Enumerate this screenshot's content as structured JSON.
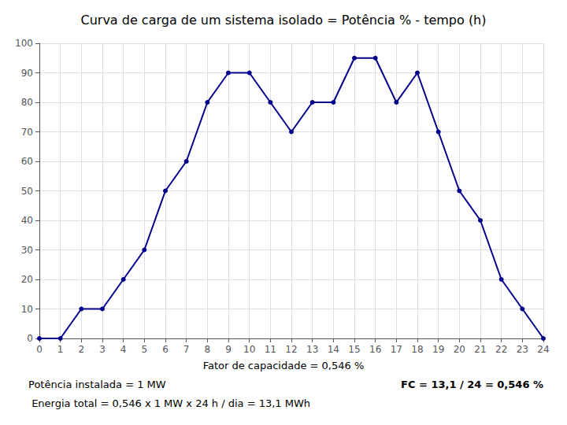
{
  "chart_data": {
    "type": "line",
    "title": "Curva de carga de um sistema isolado = Potência % - tempo (h)",
    "x": [
      0,
      1,
      2,
      3,
      4,
      5,
      6,
      7,
      8,
      9,
      10,
      11,
      12,
      13,
      14,
      15,
      16,
      17,
      18,
      19,
      20,
      21,
      22,
      23,
      24
    ],
    "values": [
      0,
      0,
      10,
      10,
      20,
      30,
      50,
      60,
      80,
      90,
      90,
      80,
      70,
      80,
      80,
      95,
      95,
      80,
      90,
      70,
      50,
      40,
      20,
      10,
      0
    ],
    "color": "#00008B",
    "marker": "circle",
    "xlim": [
      0,
      24
    ],
    "ylim": [
      0,
      100
    ],
    "xticks": [
      0,
      1,
      2,
      3,
      4,
      5,
      6,
      7,
      8,
      9,
      10,
      11,
      12,
      13,
      14,
      15,
      16,
      17,
      18,
      19,
      20,
      21,
      22,
      23,
      24
    ],
    "yticks": [
      0,
      10,
      20,
      30,
      40,
      50,
      60,
      70,
      80,
      90,
      100
    ],
    "grid": true,
    "annotations": [
      "Fator de capacidade = 0,546 %",
      "Potência instalada = 1 MW",
      " Energia total = 0,546 x 1 MW x 24 h / dia = 13,1 MWh",
      "FC = 13,1 / 24 = 0,546 %"
    ]
  }
}
